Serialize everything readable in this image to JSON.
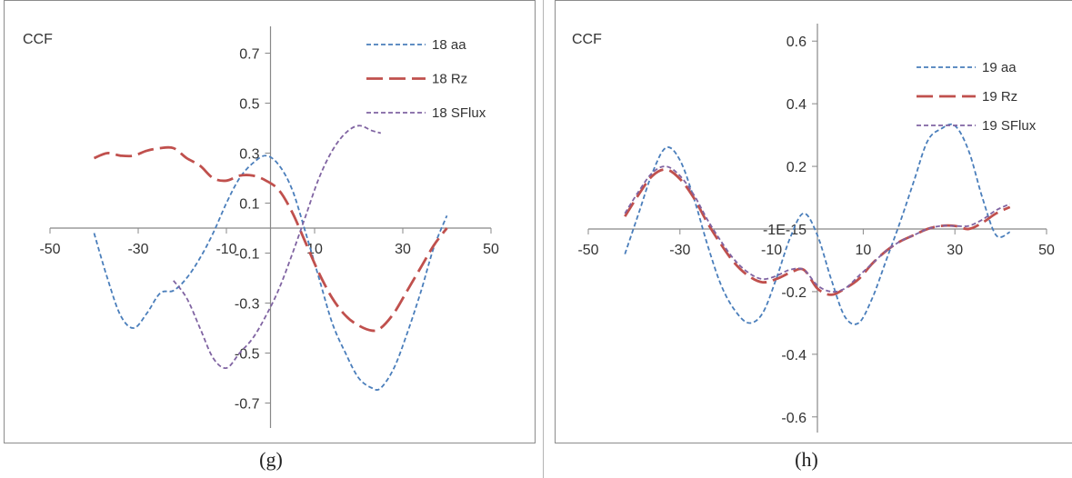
{
  "chart_data": [
    {
      "type": "line",
      "caption": "(g)",
      "ylabel": "CCF",
      "xlim": [
        -50,
        50
      ],
      "ylim": [
        -0.8,
        0.8
      ],
      "xticks": [
        -50,
        -30,
        -10,
        10,
        30,
        50
      ],
      "xtick_labels": [
        "-50",
        "-30",
        "-10",
        "10",
        "30",
        "50"
      ],
      "yticks": [
        0.7,
        0.5,
        0.3,
        0.1,
        -0.1,
        -0.3,
        -0.5,
        -0.7
      ],
      "ytick_labels": [
        "0.7",
        "0.5",
        "0.3",
        "0.1",
        "-0.1",
        "-0.3",
        "-0.5",
        "-0.7"
      ],
      "legend": "top-right",
      "grid": false,
      "series": [
        {
          "name": "18 aa",
          "color": "#4a7ebb",
          "dash": "short",
          "x": [
            -40,
            -37,
            -34,
            -31,
            -28,
            -25,
            -22,
            -19,
            -16,
            -13,
            -10,
            -7,
            -4,
            -1,
            2,
            5,
            8,
            11,
            14,
            17,
            20,
            23,
            25,
            28,
            31,
            34,
            37,
            40
          ],
          "y": [
            -0.02,
            -0.2,
            -0.35,
            -0.4,
            -0.34,
            -0.26,
            -0.25,
            -0.2,
            -0.12,
            -0.02,
            0.1,
            0.2,
            0.26,
            0.29,
            0.25,
            0.15,
            -0.02,
            -0.2,
            -0.38,
            -0.5,
            -0.6,
            -0.64,
            -0.64,
            -0.56,
            -0.42,
            -0.26,
            -0.08,
            0.05
          ]
        },
        {
          "name": "18 Rz",
          "color": "#c0504d",
          "dash": "long",
          "x": [
            -40,
            -37,
            -34,
            -31,
            -28,
            -25,
            -22,
            -19,
            -16,
            -13,
            -10,
            -7,
            -4,
            -1,
            2,
            5,
            8,
            11,
            14,
            17,
            20,
            23,
            25,
            28,
            31,
            34,
            37,
            40
          ],
          "y": [
            0.28,
            0.3,
            0.29,
            0.29,
            0.31,
            0.32,
            0.32,
            0.28,
            0.25,
            0.2,
            0.19,
            0.21,
            0.21,
            0.19,
            0.15,
            0.06,
            -0.06,
            -0.18,
            -0.28,
            -0.35,
            -0.39,
            -0.41,
            -0.4,
            -0.34,
            -0.25,
            -0.16,
            -0.07,
            0.0
          ]
        },
        {
          "name": "18 SFlux",
          "color": "#8064a2",
          "dash": "short",
          "x": [
            -22,
            -19,
            -16,
            -13,
            -10,
            -7,
            -4,
            -1,
            2,
            5,
            8,
            11,
            14,
            17,
            20,
            23,
            25
          ],
          "y": [
            -0.21,
            -0.28,
            -0.4,
            -0.52,
            -0.56,
            -0.5,
            -0.44,
            -0.35,
            -0.24,
            -0.1,
            0.05,
            0.2,
            0.31,
            0.38,
            0.41,
            0.39,
            0.38
          ]
        }
      ]
    },
    {
      "type": "line",
      "caption": "(h)",
      "ylabel": "CCF",
      "xlim": [
        -50,
        50
      ],
      "ylim": [
        -0.65,
        0.65
      ],
      "xticks": [
        -50,
        -30,
        -10,
        10,
        30,
        50
      ],
      "xtick_labels": [
        "-50",
        "-30",
        "-10",
        "10",
        "30",
        "50"
      ],
      "yticks": [
        0.6,
        0.4,
        0.2,
        0.0,
        -0.2,
        -0.4,
        -0.6
      ],
      "ytick_labels": [
        "0.6",
        "0.4",
        "0.2",
        "-1E-15",
        "-0.2",
        "-0.4",
        "-0.6"
      ],
      "legend": "top-right",
      "grid": false,
      "series": [
        {
          "name": "19 aa",
          "color": "#4a7ebb",
          "dash": "short",
          "x": [
            -42,
            -39,
            -36,
            -33,
            -30,
            -27,
            -24,
            -21,
            -18,
            -15,
            -12,
            -9,
            -6,
            -3,
            0,
            3,
            6,
            9,
            12,
            15,
            18,
            21,
            24,
            27,
            30,
            33,
            36,
            39,
            42
          ],
          "y": [
            -0.08,
            0.05,
            0.18,
            0.26,
            0.22,
            0.1,
            -0.05,
            -0.18,
            -0.26,
            -0.3,
            -0.27,
            -0.16,
            -0.03,
            0.05,
            -0.02,
            -0.16,
            -0.28,
            -0.3,
            -0.22,
            -0.1,
            0.02,
            0.15,
            0.28,
            0.32,
            0.33,
            0.25,
            0.1,
            -0.02,
            -0.01
          ]
        },
        {
          "name": "19 Rz",
          "color": "#c0504d",
          "dash": "long",
          "x": [
            -42,
            -39,
            -36,
            -33,
            -30,
            -27,
            -24,
            -21,
            -18,
            -15,
            -12,
            -9,
            -6,
            -3,
            0,
            3,
            6,
            9,
            12,
            15,
            18,
            21,
            24,
            27,
            30,
            33,
            36,
            39,
            42
          ],
          "y": [
            0.04,
            0.11,
            0.17,
            0.19,
            0.16,
            0.1,
            0.02,
            -0.05,
            -0.11,
            -0.15,
            -0.17,
            -0.16,
            -0.14,
            -0.13,
            -0.19,
            -0.21,
            -0.19,
            -0.16,
            -0.11,
            -0.07,
            -0.04,
            -0.02,
            0.0,
            0.01,
            0.01,
            0.0,
            0.02,
            0.05,
            0.07
          ]
        },
        {
          "name": "19 SFlux",
          "color": "#8064a2",
          "dash": "short",
          "x": [
            -42,
            -39,
            -36,
            -33,
            -30,
            -27,
            -24,
            -21,
            -18,
            -15,
            -12,
            -9,
            -6,
            -3,
            0,
            3,
            6,
            9,
            12,
            15,
            18,
            21,
            24,
            27,
            30,
            33,
            36,
            39,
            42
          ],
          "y": [
            0.05,
            0.12,
            0.18,
            0.2,
            0.17,
            0.11,
            0.03,
            -0.04,
            -0.1,
            -0.14,
            -0.16,
            -0.15,
            -0.13,
            -0.13,
            -0.18,
            -0.2,
            -0.19,
            -0.15,
            -0.11,
            -0.07,
            -0.04,
            -0.02,
            0.0,
            0.01,
            0.01,
            0.01,
            0.03,
            0.06,
            0.08
          ]
        }
      ]
    }
  ]
}
